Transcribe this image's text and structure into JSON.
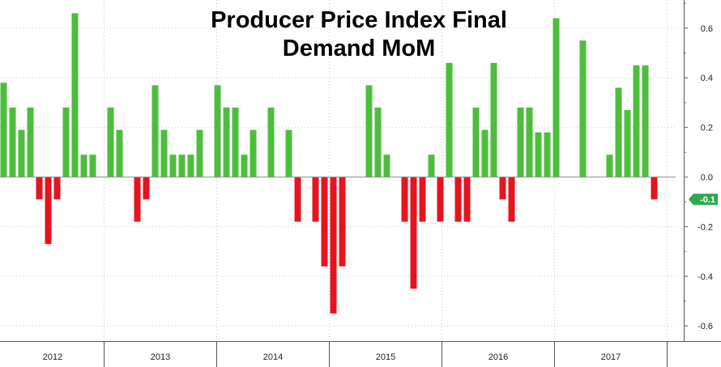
{
  "chart_data": {
    "type": "bar",
    "title_lines": [
      "Producer Price Index Final",
      "Demand MoM"
    ],
    "xlabel": "",
    "ylabel": "",
    "ylim": [
      -0.7,
      0.7
    ],
    "yticks": [
      "0.6",
      "0.4",
      "0.2",
      "0.0",
      "-0.2",
      "-0.4",
      "-0.6"
    ],
    "ytick_values": [
      0.6,
      0.4,
      0.2,
      0.0,
      -0.2,
      -0.4,
      -0.6
    ],
    "years": [
      "2012",
      "2013",
      "2014",
      "2015",
      "2016",
      "2017"
    ],
    "grid": "dotted",
    "last_value_label": "-0.1",
    "positive_color": "#4dbe3c",
    "negative_color": "#e5141e",
    "label_color": "#2fa84f",
    "series": [
      {
        "values": [
          0.38,
          0.28,
          0.19,
          0.28,
          -0.09,
          -0.27,
          -0.09,
          0.28,
          0.66,
          0.09,
          0.09,
          0.0,
          0.28,
          0.19,
          0.0,
          -0.18,
          -0.09,
          0.37,
          0.19,
          0.09,
          0.09,
          0.09,
          0.19,
          0.0,
          0.37,
          0.28,
          0.28,
          0.09,
          0.19,
          0.0,
          0.28,
          0.0,
          0.19,
          -0.18,
          0.0,
          -0.18,
          -0.36,
          -0.55,
          -0.36,
          0.0,
          0.0,
          0.37,
          0.28,
          0.09,
          0.0,
          -0.18,
          -0.45,
          -0.18,
          0.09,
          -0.18,
          0.46,
          -0.18,
          -0.18,
          0.28,
          0.19,
          0.46,
          -0.09,
          -0.18,
          0.28,
          0.28,
          0.18,
          0.18,
          0.64,
          0.0,
          0.0,
          0.55,
          0.0,
          0.0,
          0.09,
          0.36,
          0.27,
          0.45,
          0.45,
          -0.09
        ]
      }
    ]
  }
}
